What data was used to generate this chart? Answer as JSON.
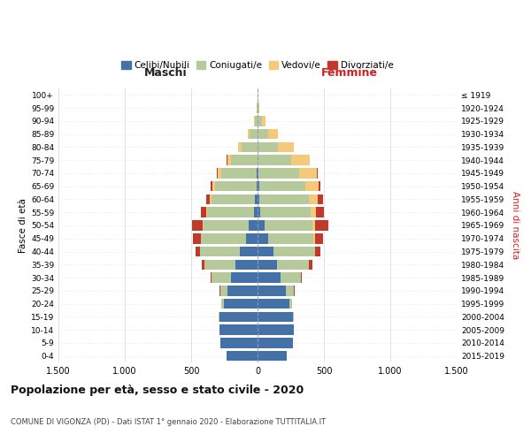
{
  "age_groups": [
    "100+",
    "95-99",
    "90-94",
    "85-89",
    "80-84",
    "75-79",
    "70-74",
    "65-69",
    "60-64",
    "55-59",
    "50-54",
    "45-49",
    "40-44",
    "35-39",
    "30-34",
    "25-29",
    "20-24",
    "15-19",
    "10-14",
    "5-9",
    "0-4"
  ],
  "birth_years": [
    "≤ 1919",
    "1920-1924",
    "1925-1929",
    "1930-1934",
    "1935-1939",
    "1940-1944",
    "1945-1949",
    "1950-1954",
    "1955-1959",
    "1960-1964",
    "1965-1969",
    "1970-1974",
    "1975-1979",
    "1980-1984",
    "1985-1989",
    "1990-1994",
    "1995-1999",
    "2000-2004",
    "2005-2009",
    "2010-2014",
    "2015-2019"
  ],
  "males": {
    "celibe": [
      0,
      0,
      0,
      0,
      0,
      0,
      5,
      10,
      20,
      30,
      70,
      90,
      135,
      170,
      200,
      230,
      255,
      290,
      285,
      280,
      235
    ],
    "coniugato": [
      2,
      5,
      20,
      60,
      120,
      200,
      270,
      310,
      330,
      350,
      340,
      335,
      300,
      230,
      145,
      50,
      20,
      5,
      0,
      0,
      0
    ],
    "vedovo": [
      0,
      2,
      5,
      15,
      30,
      30,
      25,
      20,
      10,
      5,
      5,
      5,
      0,
      0,
      0,
      0,
      0,
      0,
      0,
      0,
      0
    ],
    "divorziato": [
      0,
      0,
      0,
      0,
      0,
      5,
      10,
      15,
      25,
      45,
      80,
      55,
      35,
      20,
      10,
      5,
      0,
      0,
      0,
      0,
      0
    ]
  },
  "females": {
    "nubile": [
      0,
      0,
      0,
      0,
      0,
      0,
      5,
      10,
      15,
      20,
      55,
      80,
      120,
      145,
      170,
      210,
      240,
      265,
      270,
      265,
      220
    ],
    "coniugata": [
      2,
      5,
      30,
      80,
      150,
      250,
      310,
      350,
      370,
      380,
      360,
      340,
      310,
      240,
      155,
      65,
      20,
      5,
      0,
      0,
      0
    ],
    "vedova": [
      3,
      10,
      30,
      70,
      120,
      140,
      130,
      100,
      70,
      40,
      20,
      15,
      5,
      3,
      0,
      0,
      0,
      0,
      0,
      0,
      0
    ],
    "divorziata": [
      0,
      0,
      0,
      0,
      0,
      5,
      10,
      15,
      35,
      60,
      95,
      60,
      40,
      25,
      10,
      5,
      0,
      0,
      0,
      0,
      0
    ]
  },
  "colors": {
    "celibe": "#4472a8",
    "coniugato": "#b5c99a",
    "vedovo": "#f5c97a",
    "divorziato": "#c0392b"
  },
  "xlim": 1500,
  "title": "Popolazione per età, sesso e stato civile - 2020",
  "subtitle": "COMUNE DI VIGONZA (PD) - Dati ISTAT 1° gennaio 2020 - Elaborazione TUTTITALIA.IT",
  "xlabel_left": "Maschi",
  "xlabel_right": "Femmine",
  "ylabel_left": "Fasce di età",
  "ylabel_right": "Anni di nascita",
  "legend_labels": [
    "Celibi/Nubili",
    "Coniugati/e",
    "Vedovi/e",
    "Divorziati/e"
  ],
  "background_color": "#ffffff",
  "grid_color": "#cccccc"
}
